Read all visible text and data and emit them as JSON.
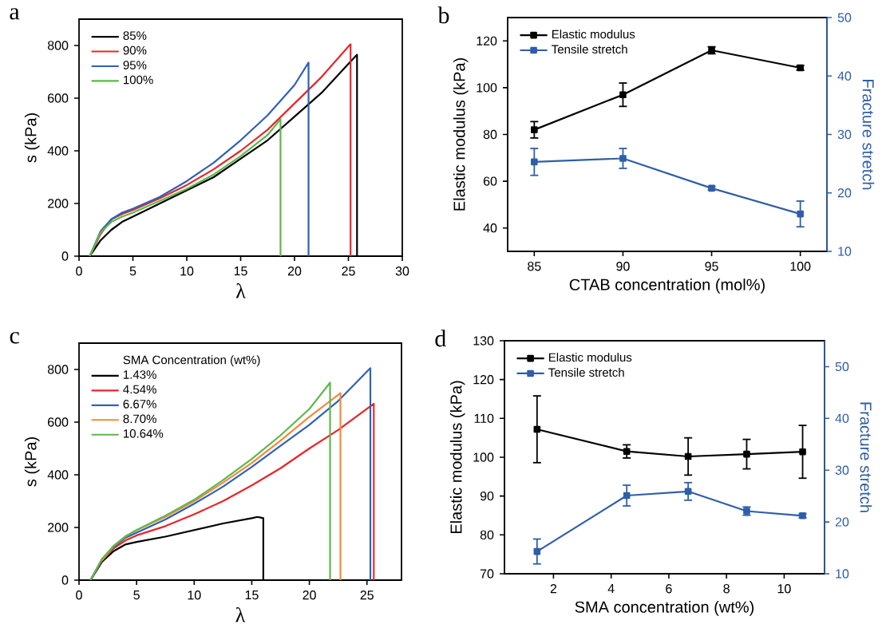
{
  "chart_data": [
    {
      "type": "line",
      "title": "a",
      "xlabel": "λ",
      "ylabel": "s (kPa)",
      "xlim": [
        0,
        30
      ],
      "ylim": [
        0,
        900
      ],
      "xticks": [
        0,
        5,
        10,
        15,
        20,
        25,
        30
      ],
      "yticks": [
        0,
        200,
        400,
        600,
        800
      ],
      "legend": "top left",
      "series": [
        {
          "name": "85%",
          "color": "#000000",
          "x": [
            1,
            2,
            3,
            4,
            5,
            7.5,
            10,
            12.5,
            15,
            17.5,
            20,
            22.5,
            25,
            25.8,
            25.8
          ],
          "values": [
            0,
            60,
            100,
            130,
            150,
            200,
            250,
            300,
            370,
            440,
            530,
            620,
            730,
            765,
            0
          ]
        },
        {
          "name": "90%",
          "color": "#e8262a",
          "x": [
            1,
            2,
            3,
            4,
            5,
            7.5,
            10,
            12.5,
            15,
            17.5,
            20,
            22.5,
            25.2,
            25.2
          ],
          "values": [
            0,
            84,
            140,
            160,
            175,
            220,
            270,
            330,
            400,
            480,
            580,
            680,
            805,
            0
          ]
        },
        {
          "name": "95%",
          "color": "#3060b8",
          "x": [
            1,
            2,
            3,
            4,
            5,
            7.5,
            10,
            12.5,
            15,
            17.5,
            20,
            21.3,
            21.3
          ],
          "values": [
            0,
            95,
            140,
            165,
            180,
            225,
            285,
            355,
            440,
            535,
            650,
            735,
            0
          ]
        },
        {
          "name": "100%",
          "color": "#5cb84a",
          "x": [
            1,
            2,
            3,
            4,
            5,
            7.5,
            10,
            12.5,
            15,
            17.5,
            18.7,
            18.7
          ],
          "values": [
            0,
            90,
            130,
            150,
            165,
            210,
            255,
            310,
            380,
            460,
            520,
            0
          ]
        }
      ]
    },
    {
      "type": "line",
      "title": "b",
      "xlabel": "CTAB concentration (mol%)",
      "ylabel": "Elastic modulus (kPa)",
      "y2label": "Fracture stretch",
      "xlim": [
        83.5,
        101.5
      ],
      "ylim": [
        30,
        130
      ],
      "y2lim": [
        10,
        50
      ],
      "xticks": [
        85,
        90,
        95,
        100
      ],
      "yticks": [
        40,
        60,
        80,
        100,
        120
      ],
      "y2ticks": [
        10,
        20,
        30,
        40,
        50
      ],
      "legend": "top left",
      "marker": "square",
      "x": [
        85,
        90,
        95,
        100
      ],
      "series": [
        {
          "name": "Elastic modulus",
          "color": "#000000",
          "values": [
            82,
            97,
            116,
            108.5
          ],
          "errors": [
            3.5,
            5,
            1.5,
            1
          ]
        },
        {
          "name": "Tensile stretch",
          "color": "#2e5ea8",
          "axis": "y2",
          "values": [
            25.3,
            25.9,
            20.8,
            16.4
          ],
          "errors": [
            2.3,
            1.7,
            0.3,
            2.2
          ]
        }
      ]
    },
    {
      "type": "line",
      "title": "c",
      "xlabel": "λ",
      "ylabel": "s (kPa)",
      "legend_title": "SMA Concentration (wt%)",
      "xlim": [
        0,
        28
      ],
      "ylim": [
        0,
        900
      ],
      "xticks": [
        0,
        5,
        10,
        15,
        20,
        25
      ],
      "yticks": [
        0,
        200,
        400,
        600,
        800
      ],
      "legend": "top left",
      "series": [
        {
          "name": "1.43%",
          "color": "#000000",
          "x": [
            1,
            2,
            3,
            4,
            5,
            7.5,
            10,
            12.5,
            15,
            15.5,
            16,
            16
          ],
          "values": [
            0,
            70,
            110,
            135,
            145,
            165,
            190,
            215,
            235,
            240,
            235,
            0
          ]
        },
        {
          "name": "4.54%",
          "color": "#e8262a",
          "x": [
            1,
            2,
            3,
            4,
            5,
            7.5,
            10,
            12.5,
            15,
            17.5,
            20,
            22.5,
            25.6,
            25.6
          ],
          "values": [
            0,
            75,
            120,
            150,
            170,
            205,
            250,
            300,
            360,
            425,
            500,
            570,
            670,
            0
          ]
        },
        {
          "name": "6.67%",
          "color": "#3060b8",
          "x": [
            1,
            2,
            3,
            4,
            5,
            7.5,
            10,
            12.5,
            15,
            17.5,
            20,
            22.5,
            25.3,
            25.3
          ],
          "values": [
            0,
            80,
            125,
            160,
            180,
            230,
            290,
            355,
            430,
            510,
            590,
            680,
            805,
            0
          ]
        },
        {
          "name": "8.70%",
          "color": "#f28a3c",
          "x": [
            2,
            3,
            4,
            5,
            7.5,
            10,
            12.5,
            15,
            17.5,
            20,
            22.7,
            22.7
          ],
          "values": [
            75,
            130,
            165,
            190,
            240,
            300,
            370,
            445,
            530,
            620,
            710,
            0
          ]
        },
        {
          "name": "10.64%",
          "color": "#5cb84a",
          "x": [
            1,
            2,
            3,
            4,
            5,
            7.5,
            10,
            12.5,
            15,
            17.5,
            20,
            21.8,
            21.8
          ],
          "values": [
            0,
            80,
            130,
            165,
            190,
            245,
            305,
            380,
            460,
            550,
            650,
            750,
            0
          ]
        }
      ]
    },
    {
      "type": "line",
      "title": "d",
      "xlabel": "SMA concentration (wt%)",
      "ylabel": "Elastic modulus (kPa)",
      "y2label": "Fracture stretch",
      "xlim": [
        0.3,
        11.4
      ],
      "ylim": [
        70,
        130
      ],
      "y2lim": [
        10,
        55
      ],
      "xticks": [
        2,
        4,
        6,
        8,
        10
      ],
      "yticks": [
        70,
        80,
        90,
        100,
        110,
        120,
        130
      ],
      "y2ticks": [
        10,
        20,
        30,
        40,
        50
      ],
      "legend": "top left",
      "marker": "square",
      "x": [
        1.43,
        4.54,
        6.67,
        8.7,
        10.64
      ],
      "series": [
        {
          "name": "Elastic modulus",
          "color": "#000000",
          "values": [
            107.2,
            101.5,
            100.2,
            100.8,
            101.4
          ],
          "errors": [
            8.6,
            1.7,
            4.8,
            3.8,
            6.8
          ]
        },
        {
          "name": "Tensile stretch",
          "color": "#2e5ea8",
          "axis": "y2",
          "values": [
            14.3,
            25.1,
            25.9,
            22.1,
            21.2
          ],
          "errors": [
            2.4,
            2.0,
            1.7,
            0.8,
            0.4
          ]
        }
      ]
    }
  ]
}
